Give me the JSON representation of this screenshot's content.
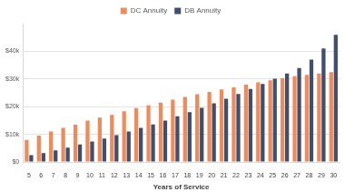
{
  "chart_data": {
    "type": "bar",
    "x_label": "Years of Service",
    "categories": [
      "5",
      "6",
      "7",
      "8",
      "9",
      "10",
      "11",
      "12",
      "13",
      "14",
      "15",
      "16",
      "17",
      "18",
      "19",
      "20",
      "21",
      "22",
      "23",
      "24",
      "25",
      "26",
      "27",
      "28",
      "29",
      "30"
    ],
    "series": [
      {
        "name": "DC Annuity",
        "color": "#ef8a5a",
        "values": [
          8000,
          9500,
          11000,
          12300,
          13500,
          15000,
          16000,
          17000,
          18300,
          19500,
          20500,
          21500,
          22500,
          23500,
          24500,
          25300,
          26200,
          27000,
          28000,
          28800,
          29500,
          30300,
          31000,
          31500,
          32000,
          32500
        ]
      },
      {
        "name": "DB Annuity",
        "color": "#404f6d",
        "values": [
          2500,
          3200,
          4200,
          5200,
          6300,
          7400,
          8500,
          9700,
          11000,
          12300,
          13600,
          15000,
          16500,
          18000,
          19600,
          21200,
          22900,
          24600,
          26400,
          28200,
          30100,
          32000,
          34000,
          37000,
          41000,
          46000
        ]
      }
    ],
    "ylim": [
      0,
      50000
    ],
    "yticks": [
      {
        "value": 0,
        "label": "$0"
      },
      {
        "value": 10000,
        "label": "$10k"
      },
      {
        "value": 20000,
        "label": "$20k"
      },
      {
        "value": 30000,
        "label": "$30k"
      },
      {
        "value": 40000,
        "label": "$40k"
      }
    ],
    "grid": true,
    "legend": "top"
  }
}
